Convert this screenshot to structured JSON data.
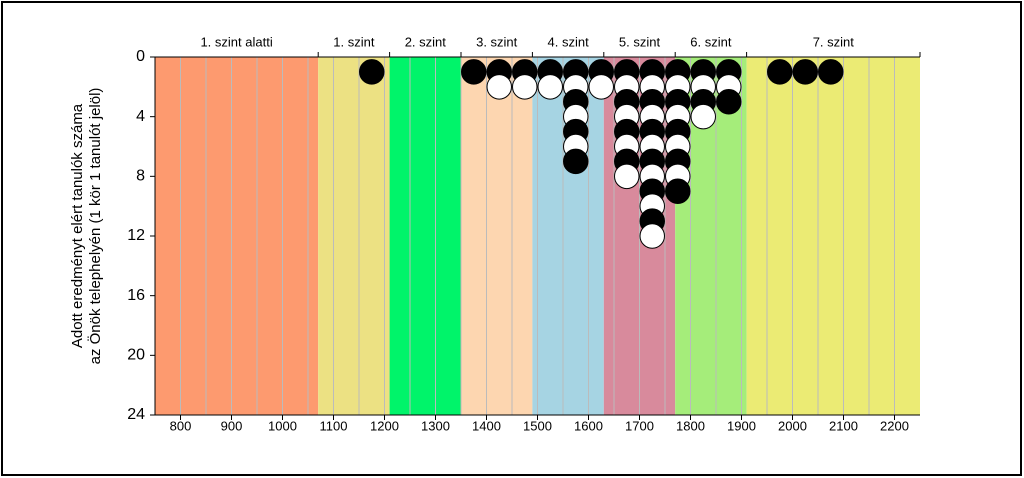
{
  "chart_data": {
    "type": "dotstack",
    "y_label_lines": [
      "Adott eredményt elért tanulók száma",
      "az Önök telephelyén (1 kör 1 tanulót jelöl)"
    ],
    "bands": [
      {
        "label": "1. szint alatti",
        "from": 750,
        "to": 1070,
        "color": "#fd9a6f"
      },
      {
        "label": "1. szint",
        "from": 1070,
        "to": 1210,
        "color": "#ece183"
      },
      {
        "label": "2. szint",
        "from": 1210,
        "to": 1350,
        "color": "#00f46a"
      },
      {
        "label": "3. szint",
        "from": 1350,
        "to": 1490,
        "color": "#fdd6b0"
      },
      {
        "label": "4. szint",
        "from": 1490,
        "to": 1630,
        "color": "#a6d4e3"
      },
      {
        "label": "5. szint",
        "from": 1630,
        "to": 1770,
        "color": "#d88a9c"
      },
      {
        "label": "6. szint",
        "from": 1770,
        "to": 1910,
        "color": "#a5ed7a"
      },
      {
        "label": "7. szint",
        "from": 1910,
        "to": 2250,
        "color": "#ebeb74"
      }
    ],
    "x": [
      1175,
      1375,
      1425,
      1475,
      1525,
      1575,
      1625,
      1675,
      1725,
      1775,
      1825,
      1875,
      1975,
      2025,
      2075
    ],
    "values": [
      1,
      1,
      2,
      2,
      2,
      7,
      2,
      8,
      12,
      9,
      4,
      3,
      1,
      1,
      1
    ],
    "dot_colors": [
      "#000000",
      "#ffffff"
    ],
    "xlim": [
      750,
      2250
    ],
    "xticks": [
      800,
      900,
      1000,
      1100,
      1200,
      1300,
      1400,
      1500,
      1600,
      1700,
      1800,
      1900,
      2000,
      2100,
      2200
    ],
    "xgrid_step": 50,
    "ylim": [
      0,
      24
    ],
    "yticks": [
      0,
      4,
      8,
      12,
      16,
      20,
      24
    ],
    "y_inverted": true
  }
}
